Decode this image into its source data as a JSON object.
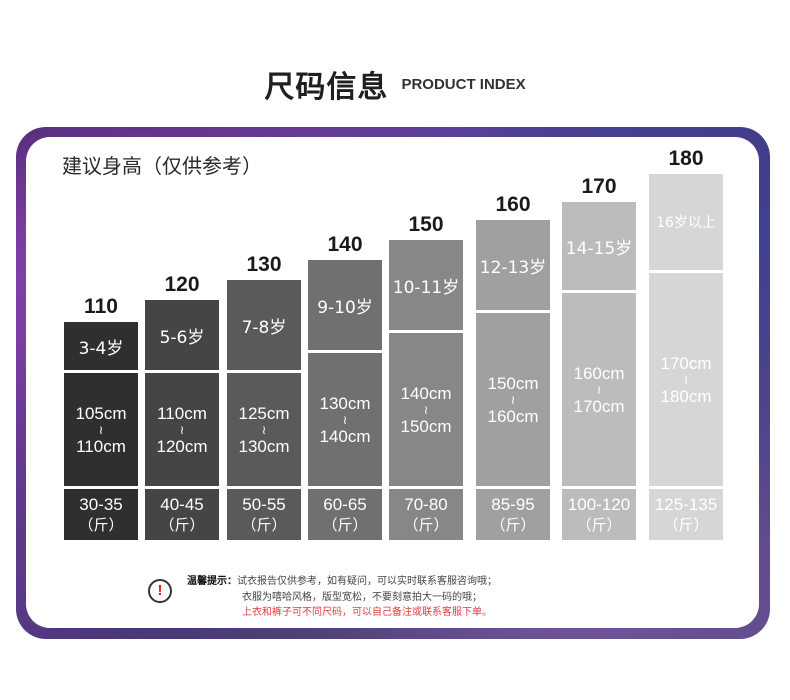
{
  "header": {
    "title_cn": "尺码信息",
    "title_en": "PRODUCT INDEX"
  },
  "chart": {
    "label": "建议身高（仅供参考）"
  },
  "columns": [
    {
      "height": "110",
      "age": "3-4岁",
      "range_from": "105cm",
      "tilde": "≀",
      "range_to": "110cm",
      "weight": "30-35",
      "unit": "（斤）",
      "color": "#2f2f2f"
    },
    {
      "height": "120",
      "age": "5-6岁",
      "range_from": "110cm",
      "tilde": "≀",
      "range_to": "120cm",
      "weight": "40-45",
      "unit": "（斤）",
      "color": "#454545"
    },
    {
      "height": "130",
      "age": "7-8岁",
      "range_from": "125cm",
      "tilde": "≀",
      "range_to": "130cm",
      "weight": "50-55",
      "unit": "（斤）",
      "color": "#5a5a5a"
    },
    {
      "height": "140",
      "age": "9-10岁",
      "range_from": "130cm",
      "tilde": "≀",
      "range_to": "140cm",
      "weight": "60-65",
      "unit": "（斤）",
      "color": "#707070"
    },
    {
      "height": "150",
      "age": "10-11岁",
      "range_from": "140cm",
      "tilde": "≀",
      "range_to": "150cm",
      "weight": "70-80",
      "unit": "（斤）",
      "color": "#878787"
    },
    {
      "height": "160",
      "age": "12-13岁",
      "range_from": "150cm",
      "tilde": "≀",
      "range_to": "160cm",
      "weight": "85-95",
      "unit": "（斤）",
      "color": "#a0a0a0"
    },
    {
      "height": "170",
      "age": "14-15岁",
      "range_from": "160cm",
      "tilde": "≀",
      "range_to": "170cm",
      "weight": "100-120",
      "unit": "（斤）",
      "color": "#bcbcbc"
    },
    {
      "height": "180",
      "age": "16岁以上",
      "range_from": "170cm",
      "tilde": "≀",
      "range_to": "180cm",
      "weight": "125-135",
      "unit": "（斤）",
      "color": "#d6d6d6"
    }
  ],
  "notice": {
    "icon": "exclamation-icon",
    "label": "温馨提示：",
    "line1": "试衣报告仅供参考，如有疑问，可以实时联系客服咨询哦；",
    "line2": "衣服为嘻哈风格，版型宽松，不要刻意拍大一码的哦；",
    "line3": "上衣和裤子可不同尺码，可以自己备注或联系客服下单。",
    "line3_color": "#e23b3b"
  }
}
